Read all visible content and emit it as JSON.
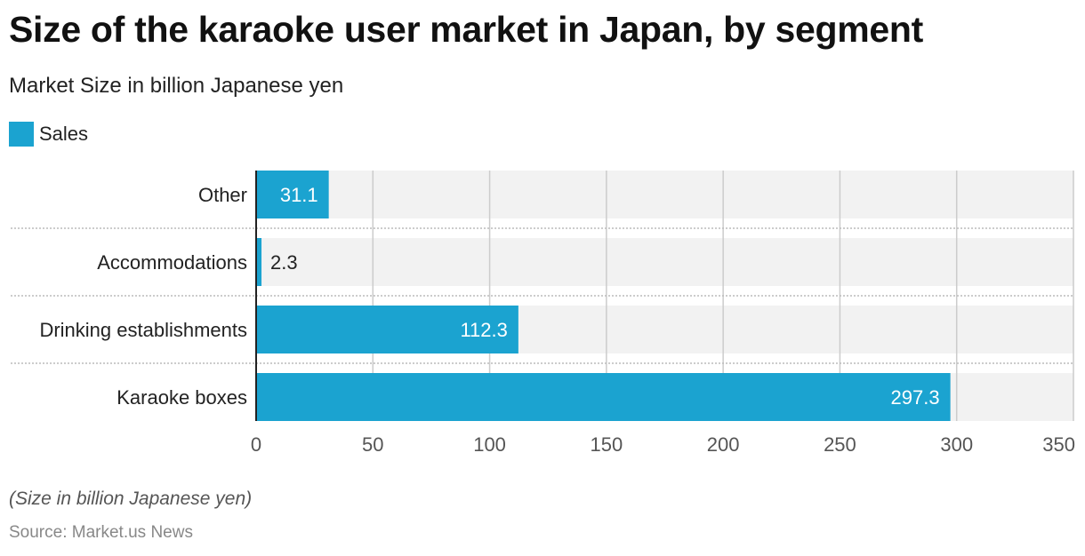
{
  "title": "Size of the karaoke user market in Japan, by segment",
  "subtitle": "Market Size in billion Japanese yen",
  "legend": {
    "label": "Sales",
    "color": "#1ba3d0"
  },
  "footnote": "(Size in billion Japanese yen)",
  "source": "Source: Market.us News",
  "chart_data": {
    "type": "bar",
    "orientation": "horizontal",
    "categories": [
      "Other",
      "Accommodations",
      "Drinking establishments",
      "Karaoke boxes"
    ],
    "series": [
      {
        "name": "Sales",
        "values": [
          31.1,
          2.3,
          112.3,
          297.3
        ],
        "color": "#1ba3d0"
      }
    ],
    "data_labels": [
      "31.1",
      "2.3",
      "112.3",
      "297.3"
    ],
    "xlim": [
      0,
      350
    ],
    "xticks": [
      0,
      50,
      100,
      150,
      200,
      250,
      300,
      350
    ],
    "grid": true
  }
}
